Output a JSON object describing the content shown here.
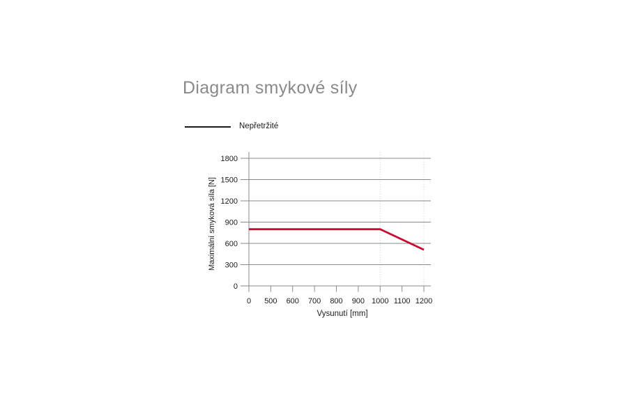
{
  "page": {
    "background": "#ffffff"
  },
  "title": "Diagram smykové síly",
  "legend": {
    "label": "Nepřetržité",
    "line_color": "#1a1a1a"
  },
  "chart_data": {
    "type": "line",
    "title": "Diagram smykové síly",
    "xlabel": "Vysunutí [mm]",
    "ylabel": "Maximální smyková síla [N]",
    "x_scale": "categorical-equal-spacing",
    "categories": [
      "0",
      "500",
      "600",
      "700",
      "800",
      "900",
      "1000",
      "1100",
      "1200"
    ],
    "y_ticks": [
      "0",
      "300",
      "600",
      "900",
      "1200",
      "1500",
      "1800"
    ],
    "ylim": [
      0,
      1800
    ],
    "grid": "horizontal solid gridlines at every y tick; light dotted vertical guides at x=1000 and x=1200",
    "legend_position": "above-left",
    "series": [
      {
        "name": "Nepřetržité",
        "color": "#c60c30",
        "points": [
          {
            "x": "0",
            "y": 800
          },
          {
            "x": "1000",
            "y": 800
          },
          {
            "x": "1200",
            "y": 510
          }
        ]
      }
    ],
    "guides_x": [
      "1000",
      "1200"
    ],
    "colors": {
      "grid": "#8a8a8a",
      "axis": "#8a8a8a",
      "guide": "#d9d9d9",
      "tick_text": "#1a1a1a"
    }
  }
}
